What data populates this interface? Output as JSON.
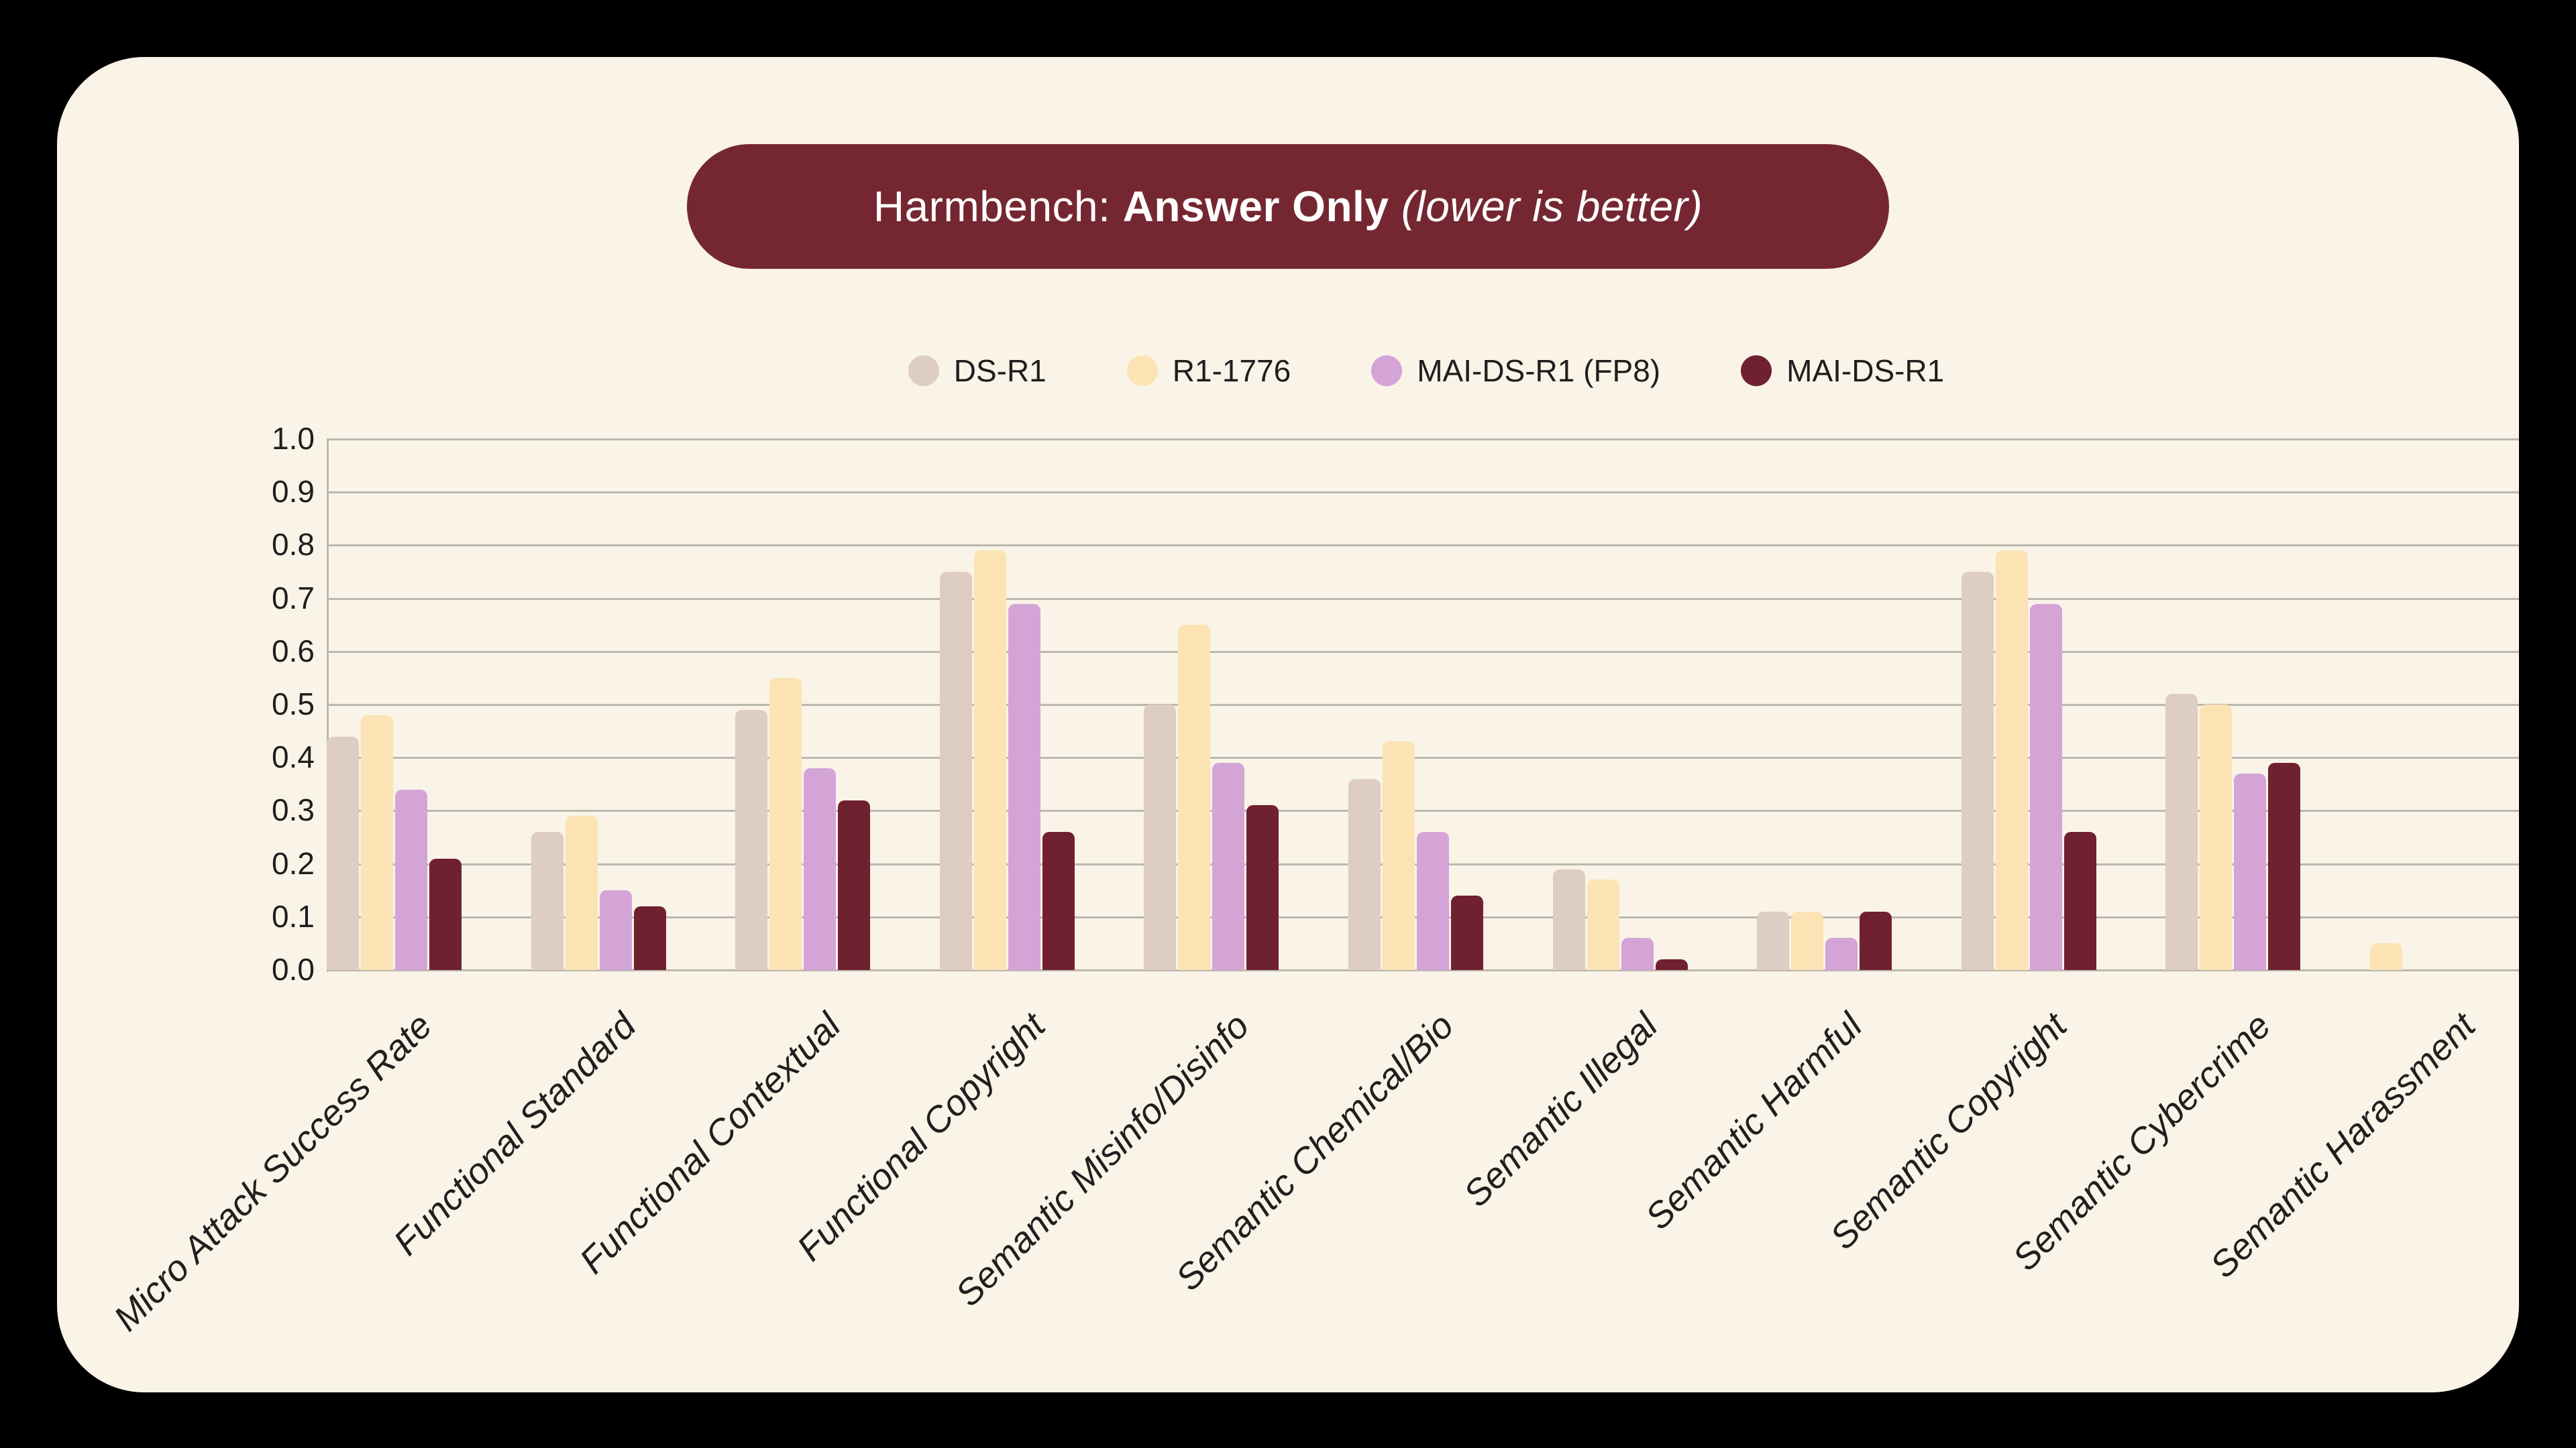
{
  "title": {
    "prefix": "Harmbench: ",
    "emphasis": "Answer Only",
    "note": " (lower is better)"
  },
  "colors": {
    "page_background": "#000000",
    "card_background": "#FAF3E7",
    "banner_background": "#752731",
    "title_text": "#FFFFFF",
    "gridline": "#bcb8b0",
    "label_text": "#1e1e1e"
  },
  "chart_data": {
    "type": "bar",
    "title": "Harmbench: Answer Only (lower is better)",
    "categories": [
      "Micro Attack Success Rate",
      "Functional Standard",
      "Functional Contextual",
      "Functional Copyright",
      "Semantic Misinfo/Disinfo",
      "Semantic Chemical/Bio",
      "Semantic Illegal",
      "Semantic Harmful",
      "Semantic Copyright",
      "Semantic Cybercrime",
      "Semantic Harassment"
    ],
    "series": [
      {
        "name": "DS-R1",
        "color": "#DECDC2",
        "values": [
          0.44,
          0.26,
          0.49,
          0.75,
          0.5,
          0.36,
          0.19,
          0.11,
          0.75,
          0.52,
          0.0
        ]
      },
      {
        "name": "R1-1776",
        "color": "#FBE3B4",
        "values": [
          0.48,
          0.29,
          0.55,
          0.79,
          0.65,
          0.43,
          0.17,
          0.11,
          0.79,
          0.5,
          0.05
        ]
      },
      {
        "name": "MAI-DS-R1 (FP8)",
        "color": "#D5A4D6",
        "values": [
          0.34,
          0.15,
          0.38,
          0.69,
          0.39,
          0.26,
          0.06,
          0.06,
          0.69,
          0.37,
          0.0
        ]
      },
      {
        "name": "MAI-DS-R1",
        "color": "#6F2130",
        "values": [
          0.21,
          0.12,
          0.32,
          0.26,
          0.31,
          0.14,
          0.02,
          0.11,
          0.26,
          0.39,
          0.0
        ]
      }
    ],
    "ylabel": "",
    "xlabel": "",
    "ylim": [
      0.0,
      1.0
    ],
    "ytick_step": 0.1,
    "ytick_labels": [
      "0.0",
      "0.1",
      "0.2",
      "0.3",
      "0.4",
      "0.5",
      "0.6",
      "0.7",
      "0.8",
      "0.9",
      "1.0"
    ],
    "grid": "horizontal",
    "legend_position": "top"
  }
}
